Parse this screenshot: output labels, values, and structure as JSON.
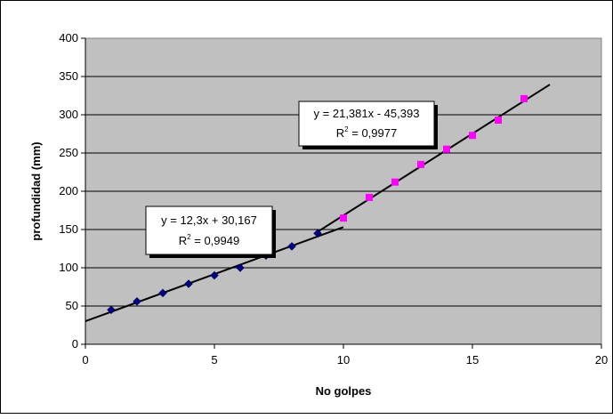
{
  "chart_data": {
    "type": "scatter",
    "title": "",
    "xlabel": "No golpes",
    "ylabel": "profundidad (mm)",
    "xlim": [
      0,
      20
    ],
    "ylim": [
      0,
      400
    ],
    "x_ticks": [
      "0",
      "5",
      "10",
      "15",
      "20"
    ],
    "y_ticks": [
      "0",
      "50",
      "100",
      "150",
      "200",
      "250",
      "300",
      "350",
      "400"
    ],
    "grid": "horizontal",
    "legend": "none",
    "plot_background": "#c0c0c0",
    "series": [
      {
        "marker": "diamond",
        "color": "#000080",
        "points": [
          {
            "x": 1,
            "y": 45
          },
          {
            "x": 2,
            "y": 56
          },
          {
            "x": 3,
            "y": 67
          },
          {
            "x": 4,
            "y": 79
          },
          {
            "x": 5,
            "y": 90
          },
          {
            "x": 6,
            "y": 100
          },
          {
            "x": 7,
            "y": 116
          },
          {
            "x": 8,
            "y": 128
          },
          {
            "x": 9,
            "y": 145
          }
        ]
      },
      {
        "marker": "square",
        "color": "#ff00ff",
        "points": [
          {
            "x": 10,
            "y": 165
          },
          {
            "x": 11,
            "y": 192
          },
          {
            "x": 12,
            "y": 212
          },
          {
            "x": 13,
            "y": 235
          },
          {
            "x": 14,
            "y": 255
          },
          {
            "x": 15,
            "y": 273
          },
          {
            "x": 16,
            "y": 293
          },
          {
            "x": 17,
            "y": 321
          }
        ]
      }
    ],
    "trendlines": [
      {
        "slope": 12.3,
        "intercept": 30.167,
        "x_from": 0,
        "x_to": 10,
        "color": "#000000"
      },
      {
        "slope": 21.381,
        "intercept": -45.393,
        "x_from": 9,
        "x_to": 18,
        "color": "#000000"
      }
    ],
    "annotations": [
      {
        "equation": "y = 12,3x + 30,167",
        "r2_label": "R",
        "r2_sup": "2",
        "r2_value": " = 0,9949"
      },
      {
        "equation": "y = 21,381x - 45,393",
        "r2_label": "R",
        "r2_sup": "2",
        "r2_value": " = 0,9977"
      }
    ]
  }
}
